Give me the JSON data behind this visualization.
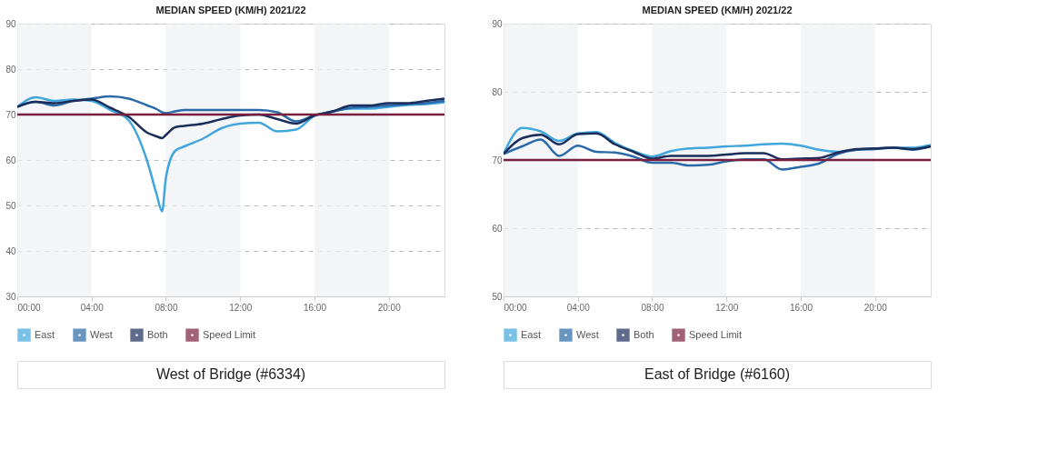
{
  "chart_data": [
    {
      "type": "line",
      "title": "MEDIAN SPEED (KM/H) 2021/22",
      "annotations": [
        "West of Bridge (#6334)"
      ],
      "x": [
        0,
        1,
        2,
        3,
        4,
        5,
        6,
        7,
        7.5,
        7.8,
        8,
        8.5,
        9,
        10,
        11,
        12,
        13,
        14,
        15,
        16,
        17,
        18,
        19,
        20,
        21,
        22,
        23
      ],
      "series": [
        {
          "name": "East",
          "color": "#41a6dc",
          "values": [
            71.7,
            73.8,
            73,
            73.3,
            73,
            71,
            68.7,
            59.7,
            52.5,
            48.7,
            56,
            62,
            63,
            64.7,
            67,
            68,
            68.2,
            66.3,
            66.7,
            69.7,
            70.7,
            71.3,
            71.3,
            71.7,
            72.1,
            72.3,
            72.7
          ]
        },
        {
          "name": "West",
          "color": "#2b6aa8",
          "values": [
            71.7,
            72.8,
            72,
            73,
            73.5,
            74,
            73.5,
            72,
            71.2,
            70.5,
            70.3,
            70.7,
            71,
            71,
            71,
            71,
            71,
            70.5,
            68.5,
            69.8,
            70.7,
            71.5,
            71.7,
            72,
            72.3,
            72.5,
            73
          ]
        },
        {
          "name": "Both",
          "color": "#1b2d5a",
          "values": [
            71.7,
            72.8,
            72.5,
            73,
            73.3,
            71.5,
            69.5,
            66,
            65.2,
            64.8,
            65.5,
            67.2,
            67.5,
            68,
            69,
            69.8,
            70,
            69,
            68,
            69.8,
            70.7,
            72,
            72,
            72.5,
            72.5,
            73,
            73.5
          ]
        },
        {
          "name": "Speed Limit",
          "color": "#7a1f3d",
          "values": [
            70,
            70,
            70,
            70,
            70,
            70,
            70,
            70,
            70,
            70,
            70,
            70,
            70,
            70,
            70,
            70,
            70,
            70,
            70,
            70,
            70,
            70,
            70,
            70,
            70,
            70,
            70
          ]
        }
      ],
      "xlim": [
        0,
        23
      ],
      "xticks": [
        {
          "value": 0,
          "label": "00:00"
        },
        {
          "value": 4,
          "label": "04:00"
        },
        {
          "value": 8,
          "label": "08:00"
        },
        {
          "value": 12,
          "label": "12:00"
        },
        {
          "value": 16,
          "label": "16:00"
        },
        {
          "value": 20,
          "label": "20:00"
        }
      ],
      "ylim": [
        30,
        90
      ],
      "yticks": [
        30,
        40,
        50,
        60,
        70,
        80,
        90
      ],
      "grid": "y",
      "legend": "bottom",
      "bands": [
        {
          "axis": "x",
          "from": 0,
          "to": 4,
          "color": "#eef1f3"
        },
        {
          "axis": "x",
          "from": 8,
          "to": 12,
          "color": "#eef1f3"
        },
        {
          "axis": "x",
          "from": 16,
          "to": 20,
          "color": "#eef1f3"
        }
      ]
    },
    {
      "type": "line",
      "title": "MEDIAN SPEED (KM/H) 2021/22",
      "annotations": [
        "East of Bridge (#6160)"
      ],
      "x": [
        0,
        1,
        2,
        3,
        4,
        5,
        6,
        7,
        8,
        9,
        10,
        11,
        12,
        13,
        14,
        15,
        16,
        17,
        18,
        19,
        20,
        21,
        22,
        23
      ],
      "series": [
        {
          "name": "East",
          "color": "#41a6dc",
          "values": [
            70.9,
            74.7,
            74.2,
            72.8,
            73.9,
            74.1,
            72.5,
            71.3,
            70.5,
            71.3,
            71.7,
            71.8,
            72,
            72.1,
            72.3,
            72.4,
            72.1,
            71.5,
            71.2,
            71.5,
            71.7,
            71.8,
            71.8,
            72.2
          ]
        },
        {
          "name": "West",
          "color": "#2b6aa8",
          "values": [
            70.9,
            72,
            73,
            70.6,
            72.1,
            71.2,
            71.1,
            70.5,
            69.6,
            69.6,
            69.2,
            69.3,
            69.8,
            70.1,
            70.1,
            68.6,
            69,
            69.5,
            70.9,
            71.5,
            71.6,
            71.8,
            71.5,
            72
          ]
        },
        {
          "name": "Both",
          "color": "#1b2d5a",
          "values": [
            70.9,
            73.2,
            73.7,
            72.3,
            73.8,
            73.9,
            72.3,
            71.2,
            70.2,
            70.6,
            70.6,
            70.6,
            70.8,
            71,
            71,
            70.1,
            70.2,
            70.3,
            71.1,
            71.6,
            71.7,
            71.8,
            71.6,
            72
          ]
        },
        {
          "name": "Speed Limit",
          "color": "#7a1f3d",
          "values": [
            70,
            70,
            70,
            70,
            70,
            70,
            70,
            70,
            70,
            70,
            70,
            70,
            70,
            70,
            70,
            70,
            70,
            70,
            70,
            70,
            70,
            70,
            70,
            70
          ]
        }
      ],
      "xlim": [
        0,
        23
      ],
      "xticks": [
        {
          "value": 0,
          "label": "00:00"
        },
        {
          "value": 4,
          "label": "04:00"
        },
        {
          "value": 8,
          "label": "08:00"
        },
        {
          "value": 12,
          "label": "12:00"
        },
        {
          "value": 16,
          "label": "16:00"
        },
        {
          "value": 20,
          "label": "20:00"
        }
      ],
      "ylim": [
        50,
        90
      ],
      "yticks": [
        50,
        60,
        70,
        80,
        90
      ],
      "grid": "y",
      "legend": "bottom",
      "bands": [
        {
          "axis": "x",
          "from": 0,
          "to": 4,
          "color": "#eef1f3"
        },
        {
          "axis": "x",
          "from": 8,
          "to": 12,
          "color": "#eef1f3"
        },
        {
          "axis": "x",
          "from": 16,
          "to": 20,
          "color": "#eef1f3"
        }
      ]
    }
  ]
}
